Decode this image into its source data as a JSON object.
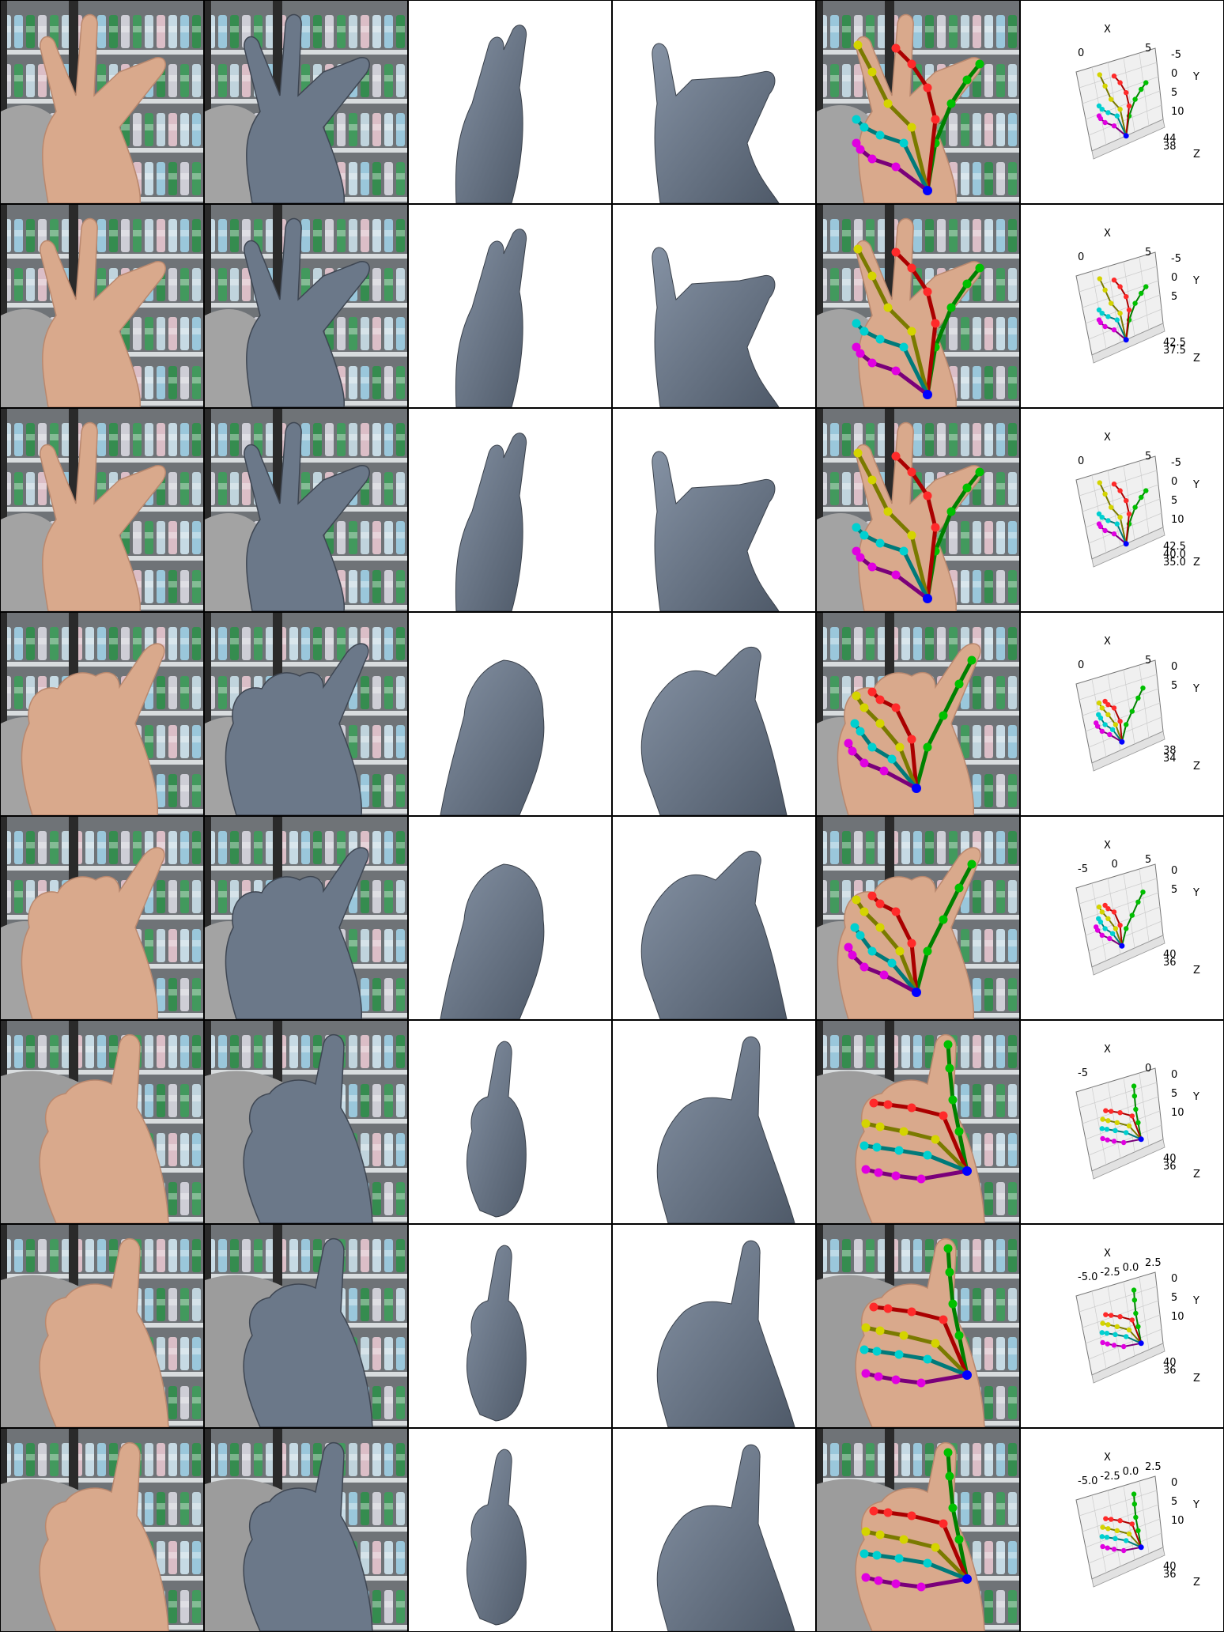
{
  "colors": {
    "mesh": "#6b7889",
    "skin": "#d9a98c",
    "wrist": "#0000ff",
    "thumb": "#00c000",
    "index": "#ff2a2a",
    "middle": "#d4d400",
    "ring": "#00d0d0",
    "pinky": "#e000e0",
    "bones_thumb": "#008000",
    "bones_index": "#aa0000",
    "bones_middle": "#7a7a00",
    "bones_ring": "#007a7a",
    "bones_pinky": "#7a007a"
  },
  "plot_axes": {
    "x": "X",
    "y": "Y",
    "z": "Z"
  },
  "rows": [
    {
      "pose": "spread",
      "x_ticks": [
        "0",
        "5"
      ],
      "y_ticks": [
        "-5",
        "0",
        "5",
        "10"
      ],
      "z_ticks": [
        "44",
        "38"
      ]
    },
    {
      "pose": "spread",
      "x_ticks": [
        "0",
        "5"
      ],
      "y_ticks": [
        "-5",
        "0",
        "5"
      ],
      "z_ticks": [
        "42.5",
        "37.5"
      ]
    },
    {
      "pose": "spread",
      "x_ticks": [
        "0",
        "5"
      ],
      "y_ticks": [
        "-5",
        "0",
        "5",
        "10"
      ],
      "z_ticks": [
        "42.5",
        "40.0",
        "35.0"
      ]
    },
    {
      "pose": "curl",
      "x_ticks": [
        "0",
        "5"
      ],
      "y_ticks": [
        "0",
        "5"
      ],
      "z_ticks": [
        "38",
        "34"
      ]
    },
    {
      "pose": "curl",
      "x_ticks": [
        "-5",
        "0",
        "5"
      ],
      "y_ticks": [
        "0",
        "5"
      ],
      "z_ticks": [
        "40",
        "36"
      ]
    },
    {
      "pose": "thumbup",
      "x_ticks": [
        "-5",
        "0"
      ],
      "y_ticks": [
        "0",
        "5",
        "10"
      ],
      "z_ticks": [
        "40",
        "36"
      ]
    },
    {
      "pose": "thumbup",
      "x_ticks": [
        "-5.0",
        "-2.5",
        "0.0",
        "2.5"
      ],
      "y_ticks": [
        "0",
        "5",
        "10"
      ],
      "z_ticks": [
        "40",
        "36"
      ]
    },
    {
      "pose": "thumbup",
      "x_ticks": [
        "-5.0",
        "-2.5",
        "0.0",
        "2.5"
      ],
      "y_ticks": [
        "0",
        "5",
        "10"
      ],
      "z_ticks": [
        "40",
        "36"
      ]
    }
  ]
}
